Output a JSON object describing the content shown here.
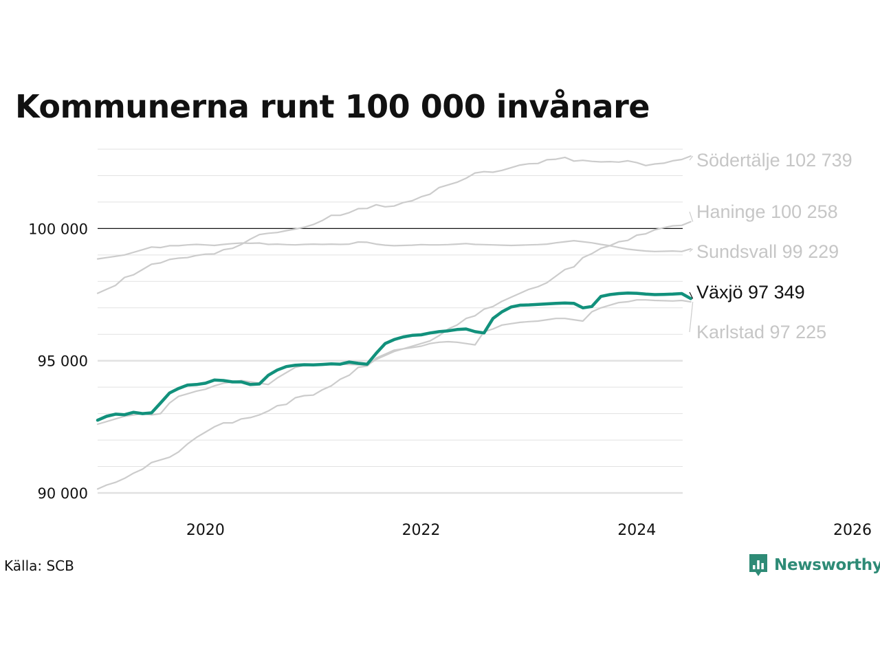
{
  "title": "Kommunerna runt 100 000 invånare",
  "source": "Källa: SCB",
  "logo_text": "Newsworthy",
  "colors": {
    "highlight": "#12917c",
    "other": "#cccccc",
    "grid": "#e1e1e1",
    "reference": "#111111",
    "logo": "#2e8b76"
  },
  "chart_data": {
    "type": "line",
    "xlim": [
      2019.0,
      2026.0
    ],
    "ylim": [
      90000,
      103000
    ],
    "x_ticks": [
      {
        "value": 2020,
        "label": "2020"
      },
      {
        "value": 2022,
        "label": "2022"
      },
      {
        "value": 2024,
        "label": "2024"
      },
      {
        "value": 2026,
        "label": "2026"
      }
    ],
    "y_ticks": [
      {
        "value": 90000,
        "label": "90 000"
      },
      {
        "value": 95000,
        "label": "95 000"
      },
      {
        "value": 100000,
        "label": "100 000"
      }
    ],
    "minor_grid_step": 1000,
    "reference_line": 100000,
    "x_start": 2019.0,
    "x_step": 0.08333,
    "series": [
      {
        "name": "Södertälje",
        "label": "Södertälje 102 739",
        "highlight": false,
        "values": [
          97550,
          97700,
          97850,
          98150,
          98250,
          98450,
          98650,
          98700,
          98830,
          98880,
          98900,
          98980,
          99030,
          99040,
          99200,
          99250,
          99400,
          99600,
          99770,
          99820,
          99850,
          99920,
          99980,
          100050,
          100150,
          100300,
          100500,
          100500,
          100600,
          100750,
          100760,
          100900,
          100820,
          100850,
          100980,
          101050,
          101200,
          101300,
          101550,
          101650,
          101750,
          101900,
          102100,
          102150,
          102130,
          102200,
          102300,
          102400,
          102450,
          102460,
          102600,
          102620,
          102690,
          102550,
          102580,
          102540,
          102520,
          102530,
          102510,
          102560,
          102490,
          102380,
          102440,
          102470,
          102560,
          102610,
          102739
        ]
      },
      {
        "name": "Haninge",
        "label": "Haninge 100 258",
        "highlight": false,
        "values": [
          90150,
          90300,
          90400,
          90550,
          90750,
          90900,
          91150,
          91250,
          91350,
          91550,
          91850,
          92100,
          92300,
          92500,
          92650,
          92650,
          92800,
          92850,
          92950,
          93100,
          93300,
          93350,
          93600,
          93680,
          93700,
          93900,
          94050,
          94300,
          94450,
          94750,
          94800,
          95100,
          95250,
          95400,
          95450,
          95550,
          95650,
          95750,
          95950,
          96200,
          96350,
          96600,
          96700,
          96950,
          97050,
          97250,
          97400,
          97550,
          97700,
          97800,
          97950,
          98200,
          98450,
          98550,
          98900,
          99050,
          99250,
          99350,
          99500,
          99550,
          99750,
          99800,
          99950,
          100030,
          100100,
          100120,
          100258
        ]
      },
      {
        "name": "Sundsvall",
        "label": "Sundsvall  99 229",
        "highlight": false,
        "values": [
          98850,
          98900,
          98950,
          99000,
          99100,
          99200,
          99300,
          99280,
          99350,
          99350,
          99380,
          99400,
          99380,
          99360,
          99400,
          99430,
          99450,
          99440,
          99450,
          99400,
          99410,
          99390,
          99380,
          99400,
          99410,
          99400,
          99410,
          99400,
          99410,
          99490,
          99480,
          99410,
          99370,
          99350,
          99360,
          99370,
          99390,
          99380,
          99380,
          99390,
          99410,
          99430,
          99400,
          99390,
          99380,
          99370,
          99360,
          99370,
          99380,
          99390,
          99410,
          99460,
          99500,
          99540,
          99500,
          99460,
          99400,
          99350,
          99280,
          99220,
          99180,
          99150,
          99130,
          99140,
          99150,
          99130,
          99229
        ]
      },
      {
        "name": "Karlstad",
        "label": "Karlstad  97 225",
        "highlight": false,
        "values": [
          92600,
          92700,
          92800,
          92900,
          92950,
          93000,
          92950,
          93000,
          93400,
          93650,
          93750,
          93850,
          93920,
          94050,
          94150,
          94200,
          94250,
          94200,
          94150,
          94100,
          94350,
          94550,
          94750,
          94820,
          94850,
          94850,
          94860,
          94870,
          94860,
          94850,
          94830,
          95050,
          95200,
          95350,
          95450,
          95500,
          95550,
          95650,
          95700,
          95720,
          95700,
          95650,
          95600,
          96100,
          96200,
          96350,
          96400,
          96450,
          96480,
          96500,
          96550,
          96600,
          96600,
          96550,
          96500,
          96850,
          97000,
          97100,
          97200,
          97230,
          97300,
          97300,
          97280,
          97270,
          97260,
          97280,
          97225
        ]
      },
      {
        "name": "Växjö",
        "label": "Växjö  97 349",
        "highlight": true,
        "values": [
          92750,
          92900,
          92980,
          92960,
          93050,
          93000,
          93030,
          93400,
          93780,
          93950,
          94080,
          94100,
          94150,
          94270,
          94250,
          94200,
          94200,
          94100,
          94120,
          94450,
          94650,
          94780,
          94830,
          94850,
          94840,
          94860,
          94880,
          94870,
          94950,
          94900,
          94870,
          95280,
          95650,
          95800,
          95900,
          95960,
          95980,
          96050,
          96100,
          96130,
          96180,
          96200,
          96100,
          96050,
          96600,
          96850,
          97030,
          97100,
          97110,
          97130,
          97150,
          97170,
          97180,
          97170,
          97000,
          97050,
          97430,
          97500,
          97540,
          97560,
          97550,
          97520,
          97500,
          97510,
          97520,
          97540,
          97349
        ]
      }
    ]
  }
}
